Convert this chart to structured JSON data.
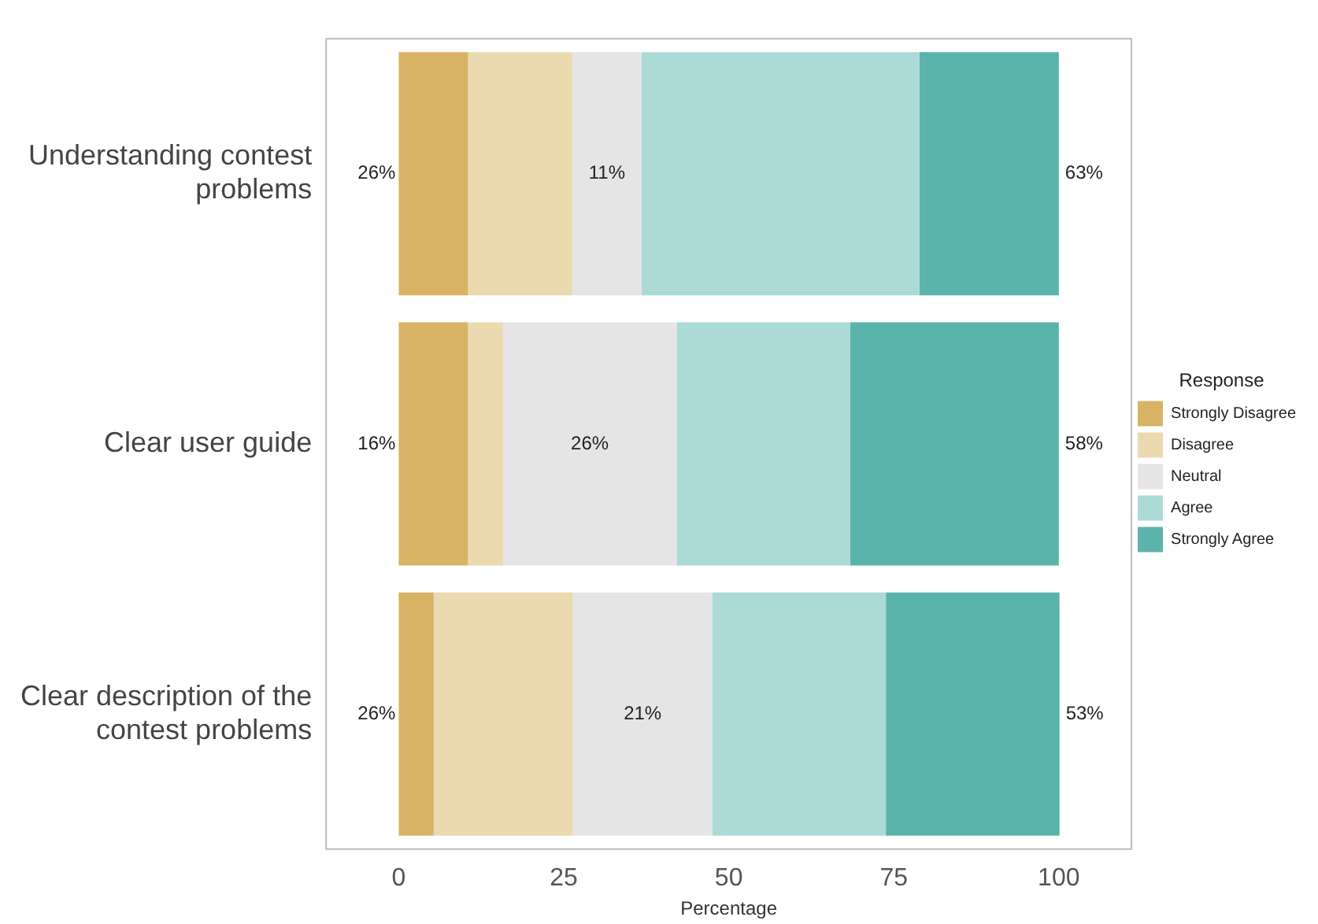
{
  "chart_data": {
    "type": "bar",
    "orientation": "horizontal",
    "stacked": true,
    "categories": [
      "Understanding contest problems",
      "Clear user guide",
      "Clear description of the contest problems"
    ],
    "series": [
      {
        "name": "Strongly Disagree",
        "color": "#d8b365",
        "values": [
          10.5,
          10.5,
          5.3
        ]
      },
      {
        "name": "Disagree",
        "color": "#ebd9b0",
        "values": [
          15.8,
          5.3,
          21.1
        ]
      },
      {
        "name": "Neutral",
        "color": "#e5e5e5",
        "values": [
          10.5,
          26.3,
          21.1
        ]
      },
      {
        "name": "Agree",
        "color": "#acdad6",
        "values": [
          42.1,
          26.3,
          26.3
        ]
      },
      {
        "name": "Strongly Agree",
        "color": "#5ab4ac",
        "values": [
          21.1,
          31.6,
          26.3
        ]
      }
    ],
    "xlim": [
      -11,
      111
    ],
    "xticks": [
      0,
      25,
      50,
      75,
      100
    ],
    "xlabel": "Percentage",
    "legend": "right",
    "legend_title": "Response",
    "grid": false,
    "annotations": [
      "26%",
      "11%",
      "63%",
      "16%",
      "26%",
      "58%",
      "26%",
      "21%",
      "53%"
    ]
  }
}
